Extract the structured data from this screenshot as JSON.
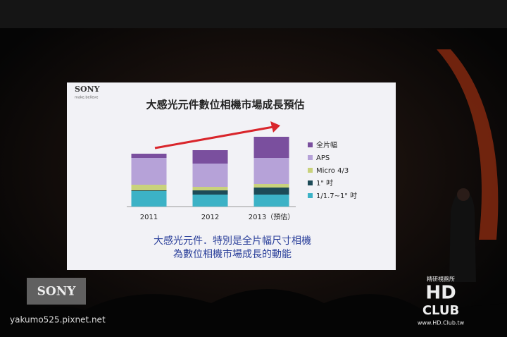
{
  "slide": {
    "brand": "SONY",
    "tagline": "make.believe"
  },
  "chart_data": {
    "type": "bar",
    "stacked": true,
    "title": "大感光元件數位相機市場成長預估",
    "categories": [
      "2011",
      "2012",
      "2013（預估）"
    ],
    "series": [
      {
        "name": "全片幅",
        "color": "#7a4f9e",
        "values": [
          6,
          19,
          30
        ]
      },
      {
        "name": "APS",
        "color": "#b6a2d8",
        "values": [
          38,
          33,
          37
        ]
      },
      {
        "name": "Micro 4/3",
        "color": "#c9d27c",
        "values": [
          8,
          5,
          5
        ]
      },
      {
        "name": "1\" 吋",
        "color": "#1d4b57",
        "values": [
          1,
          6,
          10
        ]
      },
      {
        "name": "1/1.7~1\" 吋",
        "color": "#3cb2c6",
        "values": [
          22,
          17,
          17
        ]
      }
    ],
    "ylim": [
      0,
      110
    ],
    "legend": "right"
  },
  "caption": [
    "大感光元件．特別是全片幅尺寸相機",
    "為數位相機市場成長的動能"
  ],
  "watermarks": {
    "logo": "SONY",
    "site": "yakumo525.pixnet.net",
    "club_top": "精研視務所",
    "club_hd": "HD",
    "club_name": "CLUB",
    "club_url": "www.HD.Club.tw"
  }
}
